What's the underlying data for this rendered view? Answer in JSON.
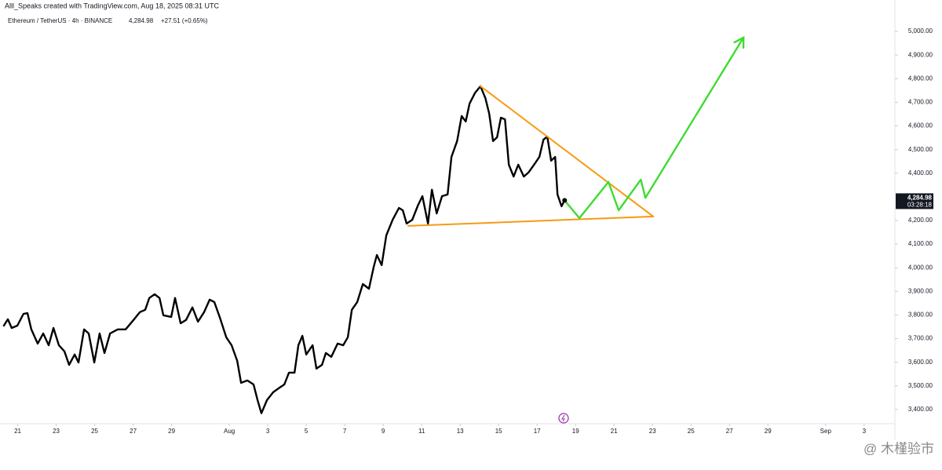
{
  "chart_data": {
    "type": "line",
    "watermark_title": "Alll_Speaks created with TradingView.com, Aug 18, 2025 08:31 UTC",
    "symbol": "Ethereum / TetherUS · 4h · BINANCE",
    "change": "+27.51 (+0.65%)",
    "last_price": {
      "value": 4284.98,
      "label": "4,284.98"
    },
    "countdown": "03:28:18",
    "corner_mark": "@ 木槿验市",
    "xlim": [
      20.08,
      66.6
    ],
    "xticks": [
      21,
      23,
      25,
      27,
      29,
      {
        "value": 32,
        "label": "Aug"
      },
      {
        "value": 34,
        "label": "3"
      },
      {
        "value": 36,
        "label": "5"
      },
      {
        "value": 38,
        "label": "7"
      },
      {
        "value": 40,
        "label": "9"
      },
      {
        "value": 42,
        "label": "11"
      },
      {
        "value": 44,
        "label": "13"
      },
      {
        "value": 46,
        "label": "15"
      },
      {
        "value": 48,
        "label": "17"
      },
      {
        "value": 50,
        "label": "19"
      },
      {
        "value": 52,
        "label": "21"
      },
      {
        "value": 54,
        "label": "23"
      },
      {
        "value": 56,
        "label": "25"
      },
      {
        "value": 58,
        "label": "27"
      },
      {
        "value": 60,
        "label": "29"
      },
      {
        "value": 63,
        "label": "Sep"
      },
      {
        "value": 65,
        "label": "3"
      }
    ],
    "ylim": [
      3340,
      5133
    ],
    "yticks": [
      {
        "value": 3400,
        "label": "3,400.00"
      },
      {
        "value": 3500,
        "label": "3,500.00"
      },
      {
        "value": 3600,
        "label": "3,600.00"
      },
      {
        "value": 3700,
        "label": "3,700.00"
      },
      {
        "value": 3800,
        "label": "3,800.00"
      },
      {
        "value": 3900,
        "label": "3,900.00"
      },
      {
        "value": 4000,
        "label": "4,000.00"
      },
      {
        "value": 4100,
        "label": "4,100.00"
      },
      {
        "value": 4200,
        "label": "4,200.00"
      },
      {
        "value": 4400,
        "label": "4,400.00"
      },
      {
        "value": 4500,
        "label": "4,500.00"
      },
      {
        "value": 4600,
        "label": "4,600.00"
      },
      {
        "value": 4700,
        "label": "4,700.00"
      },
      {
        "value": 4800,
        "label": "4,800.00"
      },
      {
        "value": 4900,
        "label": "4,900.00"
      },
      {
        "value": 5000,
        "label": "5,000.00"
      }
    ],
    "series": [
      {
        "color": "#000000",
        "width": 2.4,
        "x": [
          20.28,
          20.49,
          20.69,
          20.98,
          21.3,
          21.51,
          21.71,
          22.04,
          22.33,
          22.61,
          22.86,
          23.14,
          23.43,
          23.67,
          23.96,
          24.16,
          24.45,
          24.69,
          24.98,
          25.26,
          25.51,
          25.8,
          26.2,
          26.61,
          27.02,
          27.35,
          27.63,
          27.84,
          28.12,
          28.37,
          28.57,
          28.98,
          29.18,
          29.47,
          29.75,
          30.08,
          30.37,
          30.69,
          30.98,
          31.22,
          31.51,
          31.84,
          32.12,
          32.41,
          32.61,
          32.94,
          33.26,
          33.47,
          33.67,
          33.96,
          34.28,
          34.57,
          34.86,
          35.1,
          35.39,
          35.59,
          35.8,
          36.0,
          36.33,
          36.53,
          36.82,
          37.02,
          37.3,
          37.63,
          37.92,
          38.16,
          38.37,
          38.65,
          38.94,
          39.26,
          39.51,
          39.67,
          39.92,
          40.16,
          40.49,
          40.82,
          41.02,
          41.22,
          41.51,
          41.8,
          42.04,
          42.33,
          42.53,
          42.78,
          43.06,
          43.35,
          43.55,
          43.84,
          44.08,
          44.29,
          44.49,
          44.78,
          45.06,
          45.31,
          45.51,
          45.71,
          45.92,
          46.12,
          46.33,
          46.53,
          46.78,
          47.02,
          47.31,
          47.55,
          47.84,
          48.12,
          48.33,
          48.53,
          48.73,
          48.94,
          49.06,
          49.27,
          49.43
        ],
        "values": [
          3755,
          3782,
          3745,
          3755,
          3805,
          3808,
          3739,
          3679,
          3722,
          3672,
          3745,
          3672,
          3646,
          3589,
          3633,
          3599,
          3739,
          3722,
          3599,
          3722,
          3639,
          3722,
          3739,
          3739,
          3779,
          3812,
          3822,
          3872,
          3888,
          3872,
          3799,
          3792,
          3872,
          3765,
          3779,
          3832,
          3772,
          3812,
          3865,
          3855,
          3789,
          3706,
          3672,
          3606,
          3513,
          3523,
          3506,
          3440,
          3384,
          3440,
          3473,
          3490,
          3506,
          3556,
          3556,
          3672,
          3712,
          3633,
          3672,
          3573,
          3589,
          3639,
          3623,
          3679,
          3672,
          3706,
          3822,
          3855,
          3931,
          3911,
          4004,
          4054,
          4011,
          4137,
          4203,
          4253,
          4243,
          4187,
          4203,
          4263,
          4303,
          4187,
          4330,
          4230,
          4303,
          4310,
          4469,
          4536,
          4642,
          4619,
          4695,
          4741,
          4768,
          4718,
          4652,
          4536,
          4552,
          4635,
          4628,
          4436,
          4386,
          4436,
          4386,
          4403,
          4436,
          4469,
          4542,
          4555,
          4453,
          4469,
          4310,
          4260,
          4284.98
        ]
      },
      {
        "color": "#f59a12",
        "width": 2,
        "x": [
          45.06,
          54.04
        ],
        "values": [
          4768,
          4217
        ]
      },
      {
        "color": "#f59a12",
        "width": 2,
        "x": [
          41.3,
          54.04
        ],
        "values": [
          4177,
          4217
        ]
      },
      {
        "color": "#3ddc2f",
        "width": 2.4,
        "arrow": true,
        "x": [
          49.43,
          50.2,
          51.71,
          52.24,
          53.39,
          53.63,
          58.73
        ],
        "values": [
          4284.98,
          4210,
          4363,
          4243,
          4373,
          4296,
          4974
        ]
      }
    ]
  }
}
